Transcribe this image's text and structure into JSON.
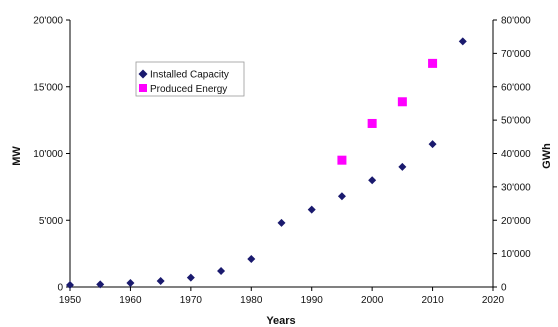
{
  "chart_data": {
    "type": "scatter",
    "xlabel": "Years",
    "ylabel_left": "MW",
    "ylabel_right": "GWh",
    "xlim": [
      1950,
      2020
    ],
    "ylim_left": [
      0,
      20000
    ],
    "ylim_right": [
      0,
      80000
    ],
    "x_ticks": [
      "1950",
      "1960",
      "1970",
      "1980",
      "1990",
      "2000",
      "2010",
      "2020"
    ],
    "y_left_ticks": [
      "0",
      "5'000",
      "10'000",
      "15'000",
      "20'000"
    ],
    "y_right_ticks": [
      "0",
      "10'000",
      "20'000",
      "30'000",
      "40'000",
      "50'000",
      "60'000",
      "70'000",
      "80'000"
    ],
    "grid": false,
    "legend_position": "upper-left",
    "series": [
      {
        "name": "Installed Capacity",
        "axis": "left",
        "marker": "diamond",
        "color": "#1a1a6e",
        "points": [
          {
            "x": 1950,
            "y": 150
          },
          {
            "x": 1955,
            "y": 200
          },
          {
            "x": 1960,
            "y": 300
          },
          {
            "x": 1965,
            "y": 450
          },
          {
            "x": 1970,
            "y": 700
          },
          {
            "x": 1975,
            "y": 1200
          },
          {
            "x": 1980,
            "y": 2100
          },
          {
            "x": 1985,
            "y": 4800
          },
          {
            "x": 1990,
            "y": 5800
          },
          {
            "x": 1995,
            "y": 6800
          },
          {
            "x": 2000,
            "y": 8000
          },
          {
            "x": 2005,
            "y": 9000
          },
          {
            "x": 2010,
            "y": 10700
          },
          {
            "x": 2015,
            "y": 18400
          }
        ]
      },
      {
        "name": "Produced Energy",
        "axis": "right",
        "marker": "square",
        "color": "#ff00ff",
        "points": [
          {
            "x": 1995,
            "y": 38000
          },
          {
            "x": 2000,
            "y": 49000
          },
          {
            "x": 2005,
            "y": 55500
          },
          {
            "x": 2010,
            "y": 67000
          }
        ]
      }
    ]
  }
}
